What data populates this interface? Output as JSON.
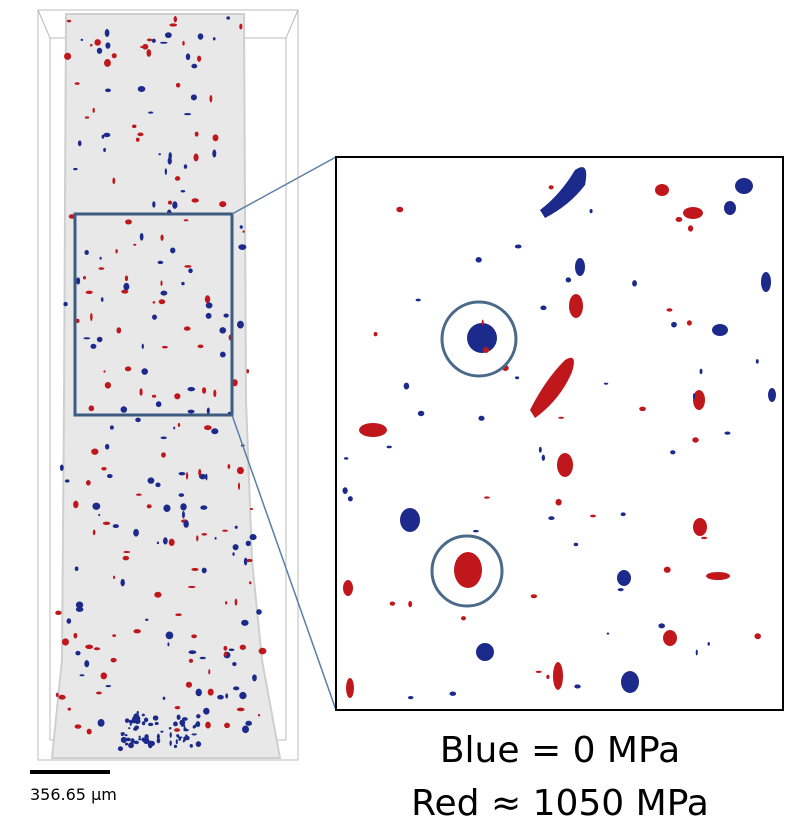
{
  "scale_bar": {
    "label": "356.65 µm"
  },
  "legend": {
    "lines": [
      "Blue = 0 MPa",
      "Red ≈ 1050 MPa"
    ]
  }
}
